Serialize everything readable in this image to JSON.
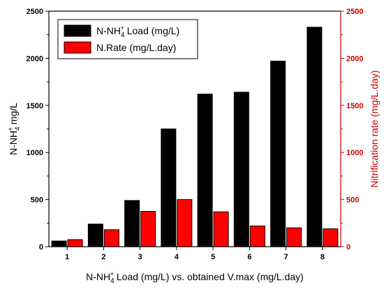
{
  "chart_data": {
    "type": "bar",
    "categories": [
      "1",
      "2",
      "3",
      "4",
      "5",
      "6",
      "7",
      "8"
    ],
    "series": [
      {
        "name": "N-NH4+ Load (mg/L)",
        "axis": "left",
        "color": "#000000",
        "values": [
          60,
          240,
          490,
          1250,
          1620,
          1640,
          1970,
          2330
        ]
      },
      {
        "name": "N.Rate (mg/L.day)",
        "axis": "right",
        "color": "#ff0000",
        "values": [
          75,
          180,
          375,
          500,
          370,
          220,
          200,
          190
        ]
      }
    ],
    "legend": {
      "position": "top-left",
      "entries": [
        {
          "prefix": "N-NH",
          "sub": "4",
          "sup": "+",
          "suffix": " Load (mg/L)"
        },
        {
          "text": "N.Rate (mg/L.day)"
        }
      ]
    },
    "xlabel": {
      "prefix": "N-NH",
      "sub": "4",
      "sup": "+",
      "suffix": " Load (mg/L) vs. obtained V.max (mg/L.day)"
    },
    "ylabel_left": {
      "prefix": "N-NH",
      "sub": "4",
      "sup": "+",
      "suffix": " mg/L"
    },
    "ylabel_right": "Nitrification rate (mg/L.day)",
    "ylim_left": [
      0,
      2500
    ],
    "ylim_right": [
      0,
      2500
    ],
    "yticks_left": [
      0,
      500,
      1000,
      1500,
      2000,
      2500
    ],
    "yticks_right": [
      0,
      500,
      1000,
      1500,
      2000,
      2500
    ],
    "right_axis_color": "#cc0000",
    "grid": false
  }
}
